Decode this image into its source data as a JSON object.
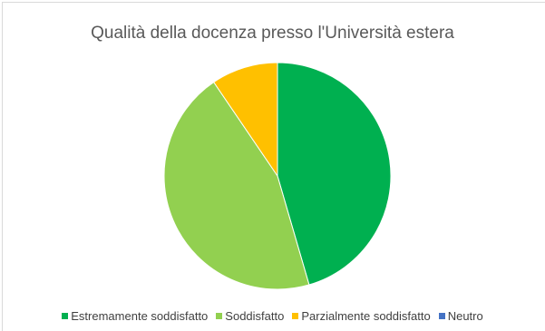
{
  "chart_data": {
    "type": "pie",
    "title": "Qualità della docenza presso l'Università estera",
    "categories": [
      "Estremamente soddisfatto",
      "Soddisfatto",
      "Parzialmente soddisfatto",
      "Neutro"
    ],
    "values": [
      45.5,
      45,
      9.5,
      0
    ],
    "colors": [
      "#00b050",
      "#92d050",
      "#ffc000",
      "#4472c4"
    ],
    "legend_position": "bottom"
  }
}
